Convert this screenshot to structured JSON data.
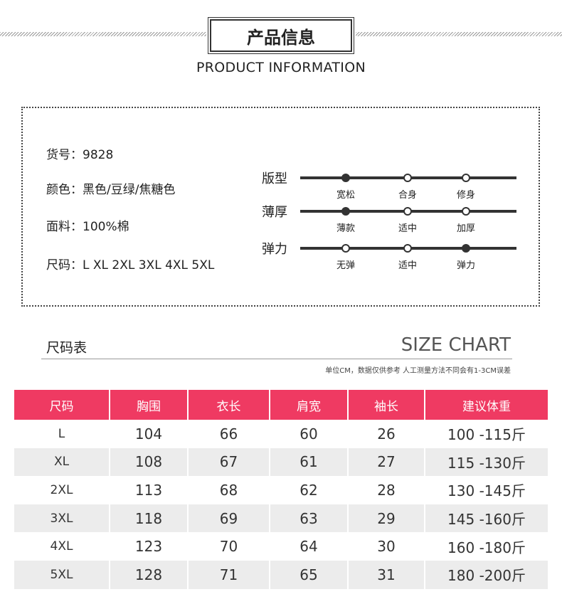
{
  "header": {
    "title": "产品信息",
    "subtitle": "PRODUCT INFORMATION"
  },
  "info": [
    {
      "label": "货号：",
      "value": "9828"
    },
    {
      "label": "颜色：",
      "value": "黑色/豆绿/焦糖色"
    },
    {
      "label": "面料：",
      "value": "100%棉"
    },
    {
      "label": "尺码：",
      "value": "L XL 2XL 3XL 4XL 5XL"
    }
  ],
  "attributes": [
    {
      "name": "版型",
      "options": [
        "宽松",
        "合身",
        "修身"
      ],
      "selected": 0
    },
    {
      "name": "薄厚",
      "options": [
        "薄款",
        "适中",
        "加厚"
      ],
      "selected": 0
    },
    {
      "name": "弹力",
      "options": [
        "无弹",
        "适中",
        "弹力"
      ],
      "selected": 2
    }
  ],
  "size_chart": {
    "title": "尺码表",
    "title_en": "SIZE CHART",
    "note": "单位CM，数据仅供参考 人工测量方法不同会有1-3CM误差",
    "columns": [
      "尺码",
      "胸围",
      "衣长",
      "肩宽",
      "袖长",
      "建议体重"
    ],
    "rows": [
      [
        "L",
        104,
        66,
        60,
        26,
        "100 -115斤"
      ],
      [
        "XL",
        108,
        67,
        61,
        27,
        "115 -130斤"
      ],
      [
        "2XL",
        113,
        68,
        62,
        28,
        "130 -145斤"
      ],
      [
        "3XL",
        118,
        69,
        63,
        29,
        "145 -160斤"
      ],
      [
        "4XL",
        123,
        70,
        64,
        30,
        "160 -180斤"
      ],
      [
        "5XL",
        128,
        71,
        65,
        31,
        "180 -200斤"
      ]
    ]
  }
}
